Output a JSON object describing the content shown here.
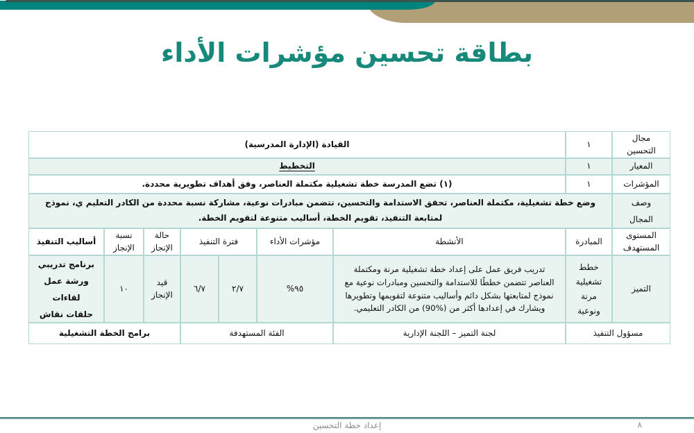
{
  "page": {
    "title": "بطاقة تحسين مؤشرات الأداء"
  },
  "colors": {
    "brand_teal": "#00837b",
    "brand_tan": "#b19f77",
    "title_teal": "#17897b",
    "table_border": "#b3d8d3",
    "row_stripe": "#e9f3f0"
  },
  "table": {
    "improvement_area": {
      "label": "مجال\nالتحسين",
      "index": "١",
      "value": "القيادة (الإدارة المدرسية)"
    },
    "standard": {
      "label": "المعيار",
      "index": "١",
      "value": "التخطيط"
    },
    "indicators": {
      "label": "المؤشرات",
      "index": "١",
      "value": "(١) تضع المدرسة خطة تشغيلية مكتملة العناصر، وفق أهداف تطويرية محددة."
    },
    "description": {
      "label": "وصف\nالمجال",
      "value": "وضع خطة تشغيلية، مكتملة العناصر، تحقق الاستدامة والتحسين، تتضمن مبادرات نوعية، مشاركة نسبة محددة من الكادر التعليم ي، نموذج لمتابعة التنفيذ، تقويم الخطة، أساليب متنوعة لتقويم الخطة."
    },
    "headers": {
      "target_level": "المستوى\nالمستهدف",
      "initiative": "المبادرة",
      "activities": "الأنشطة",
      "kpi": "مؤشرات الأداء",
      "period": "فترة التنفيذ",
      "status": "حالة\nالإنجاز",
      "progress": "نسبة\nالإنجاز",
      "methods": "أساليب التنفيذ"
    },
    "data_row": {
      "target_level": "التميز",
      "initiative": "خطط\nتشغيلية\nمرنة\nونوعية",
      "activities": "تدريب فريق عمل على إعداد خطة تشغيلية مرنة ومكتملة العناصر تتضمن خططًا للاستدامة والتحسين ومبادرات نوعية مع نموذج لمتابعتها بشكل دائم وأساليب متنوعة لتقويمها وتطويرها ويشارك في إعدادها أكثر من (%90) من الكادر التعليمي.",
      "kpi": "٩٥%",
      "period_start": "٢/٧",
      "period_end": "٦/٧",
      "status": "قيد\nالإنجاز",
      "progress": "١٠",
      "methods": "برنامج تدريبي ورشة عمل\nلقاءات\nحلقات نقاش"
    },
    "bottom_row": {
      "owner_label": "مسؤول التنفيذ",
      "owner_value": "لجنة التميز – اللجنة الإدارية",
      "audience_label": "الفئة المستهدفة",
      "audience_value": "برامج الخطة التشغيلية"
    }
  },
  "footer": {
    "text": "إعداد خطة التحسين",
    "page_number": "٨"
  }
}
